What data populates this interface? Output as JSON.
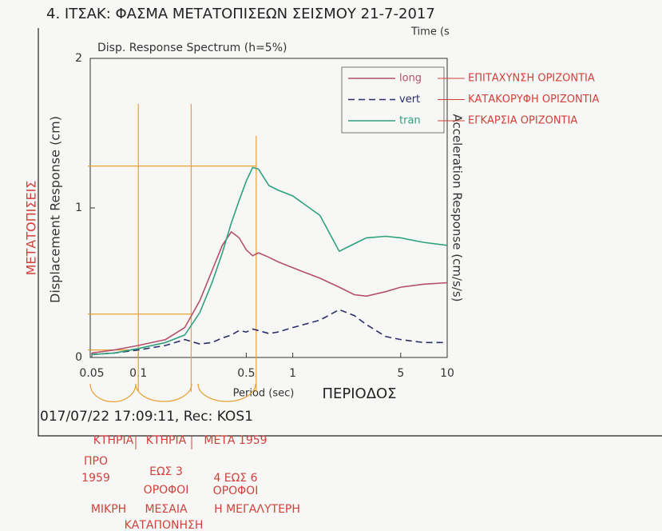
{
  "chart_data": {
    "type": "line",
    "title": "4. ΙΤΣΑΚ: ΦΑΣΜΑ ΜΕΤΑΤΟΠΙΣΕΩΝ ΣΕΙΣΜΟΥ 21-7-2017",
    "subtitle": "Disp. Response Spectrum (h=5%)",
    "corner_text": "Time (s",
    "xlabel": "Period (sec)",
    "ylabel": "Displacement Response (cm)",
    "y2label": "Acceleration Response (cm/s/s)",
    "footer": "017/07/22 17:09:11, Rec: KOS1",
    "log_x": true,
    "xlim": [
      0.05,
      10
    ],
    "ylim": [
      0,
      2
    ],
    "xticks": [
      0.05,
      0.1,
      0.5,
      1,
      5,
      10
    ],
    "yticks": [
      0,
      1,
      2
    ],
    "x": [
      0.05,
      0.07,
      0.1,
      0.15,
      0.2,
      0.25,
      0.3,
      0.35,
      0.4,
      0.45,
      0.5,
      0.55,
      0.6,
      0.7,
      0.8,
      1,
      1.5,
      2,
      2.5,
      3,
      4,
      5,
      7,
      10
    ],
    "series": [
      {
        "name": "long",
        "color": "#b4506c",
        "line_style": "solid",
        "values": [
          0.03,
          0.05,
          0.08,
          0.12,
          0.2,
          0.38,
          0.58,
          0.75,
          0.84,
          0.8,
          0.72,
          0.68,
          0.7,
          0.67,
          0.64,
          0.6,
          0.53,
          0.47,
          0.42,
          0.41,
          0.44,
          0.47,
          0.49,
          0.5
        ]
      },
      {
        "name": "vert",
        "color": "#2a2f6a",
        "line_style": "dashed",
        "values": [
          0.02,
          0.03,
          0.05,
          0.08,
          0.12,
          0.09,
          0.1,
          0.13,
          0.15,
          0.18,
          0.17,
          0.19,
          0.18,
          0.16,
          0.17,
          0.2,
          0.25,
          0.32,
          0.28,
          0.22,
          0.14,
          0.12,
          0.1,
          0.1
        ]
      },
      {
        "name": "tran",
        "color": "#2fa07e",
        "line_style": "solid",
        "values": [
          0.02,
          0.03,
          0.06,
          0.1,
          0.15,
          0.3,
          0.5,
          0.7,
          0.9,
          1.05,
          1.18,
          1.27,
          1.26,
          1.15,
          1.12,
          1.08,
          0.95,
          0.71,
          0.76,
          0.8,
          0.81,
          0.8,
          0.77,
          0.75
        ]
      }
    ],
    "annotations": {
      "color": "#d2403a",
      "guide_color": "#e8a030",
      "side_label": "ΜΕΤΑΤΟΠΙΣΕΙΣ",
      "period_label": "ΠΕΡΙΟΔΟΣ",
      "series_notes": [
        "ΕΠΙΤΑΧΥΝΣΗ ΟΡΙΖΟΝΤΙΑ",
        "ΚΑΤΑΚΟΡΥΦΗ ΟΡΙΖΟΝΤΙΑ",
        "ΕΓΚΑΡΣΙΑ ΟΡΙΖΟΝΤΙΑ"
      ],
      "guides": [
        {
          "x": 0.1,
          "y": 0.05
        },
        {
          "x": 0.22,
          "y": 0.29
        },
        {
          "x": 0.58,
          "y": 1.28
        }
      ],
      "bottom_notes": [
        "ΚΤΗΡΙΑ",
        "ΠΡΟ",
        "1959",
        "ΚΤΗΡΙΑ",
        "ΜΕΤΑ 1959",
        "ΕΩΣ 3",
        "ΟΡΟΦΟΙ",
        "4 ΕΩΣ 6",
        "ΟΡΟΦΟΙ",
        "ΜΙΚΡΗ",
        "ΜΕΣΑΙΑ",
        "Η ΜΕΓΑΛΥΤΕΡΗ",
        "ΚΑΤΑΠΟΝΗΣΗ"
      ]
    }
  }
}
